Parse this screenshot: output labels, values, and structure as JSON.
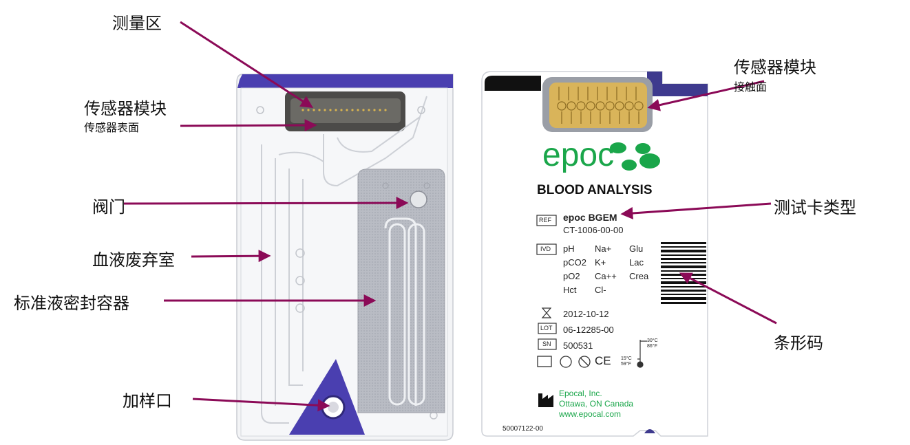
{
  "callouts_left": {
    "measure_zone": "测量区",
    "sensor_module": "传感器模块",
    "sensor_surface": "传感器表面",
    "valve": "阀门",
    "blood_waste": "血液废弃室",
    "calibrant_container": "标准液密封容器",
    "sample_port": "加样口"
  },
  "callouts_right": {
    "sensor_module": "传感器模块",
    "contact_surface": "接触面",
    "card_type": "测试卡类型",
    "barcode": "条形码"
  },
  "card": {
    "brand": "epoc",
    "subtitle": "BLOOD ANALYSIS",
    "ref_box": "REF",
    "ref_name": "epoc BGEM",
    "ref_code": "CT-1006-00-00",
    "ivd_box": "IVD",
    "analytes": [
      [
        "pH",
        "Na+",
        "Glu"
      ],
      [
        "pCO2",
        "K+",
        "Lac"
      ],
      [
        "pO2",
        "Ca++",
        "Crea"
      ],
      [
        "Hct",
        "Cl-",
        ""
      ]
    ],
    "expiry_date": "2012-10-12",
    "lot_box": "LOT",
    "lot": "06-12285-00",
    "sn_box": "SN",
    "sn": "500531",
    "temp_high": "30°C\n86°F",
    "temp_low": "15°C\n59°F",
    "ce": "CE",
    "mfr_name": "Epocal, Inc.",
    "mfr_city": "Ottawa, ON Canada",
    "mfr_web": "www.epocal.com",
    "part_no": "50007122-00"
  },
  "colors": {
    "arrow": "#8b0a57",
    "purple": "#4a3fb0",
    "epoc_green": "#1aa64a",
    "gold": "#d9b45a"
  }
}
